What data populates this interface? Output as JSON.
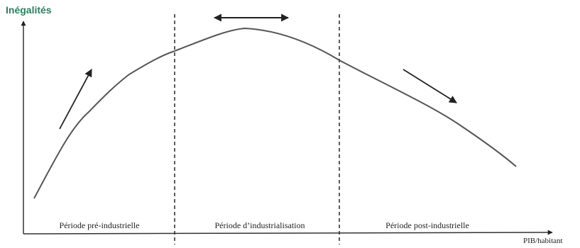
{
  "y_axis": {
    "label": "Inégalités"
  },
  "x_axis": {
    "label": "PIB/habitant"
  },
  "periods": [
    {
      "label": "Période pré-industrielle"
    },
    {
      "label": "Période d’industrialisation"
    },
    {
      "label": "Période post-industrielle"
    }
  ],
  "colors": {
    "curve": "#555555",
    "axes": "#333333",
    "y_label": "#2e7d60",
    "separators": "#333333"
  },
  "icons": {
    "trend_up": "arrow-up-right-icon",
    "trend_flat": "double-arrow-horizontal-icon",
    "trend_down": "arrow-down-right-icon"
  }
}
